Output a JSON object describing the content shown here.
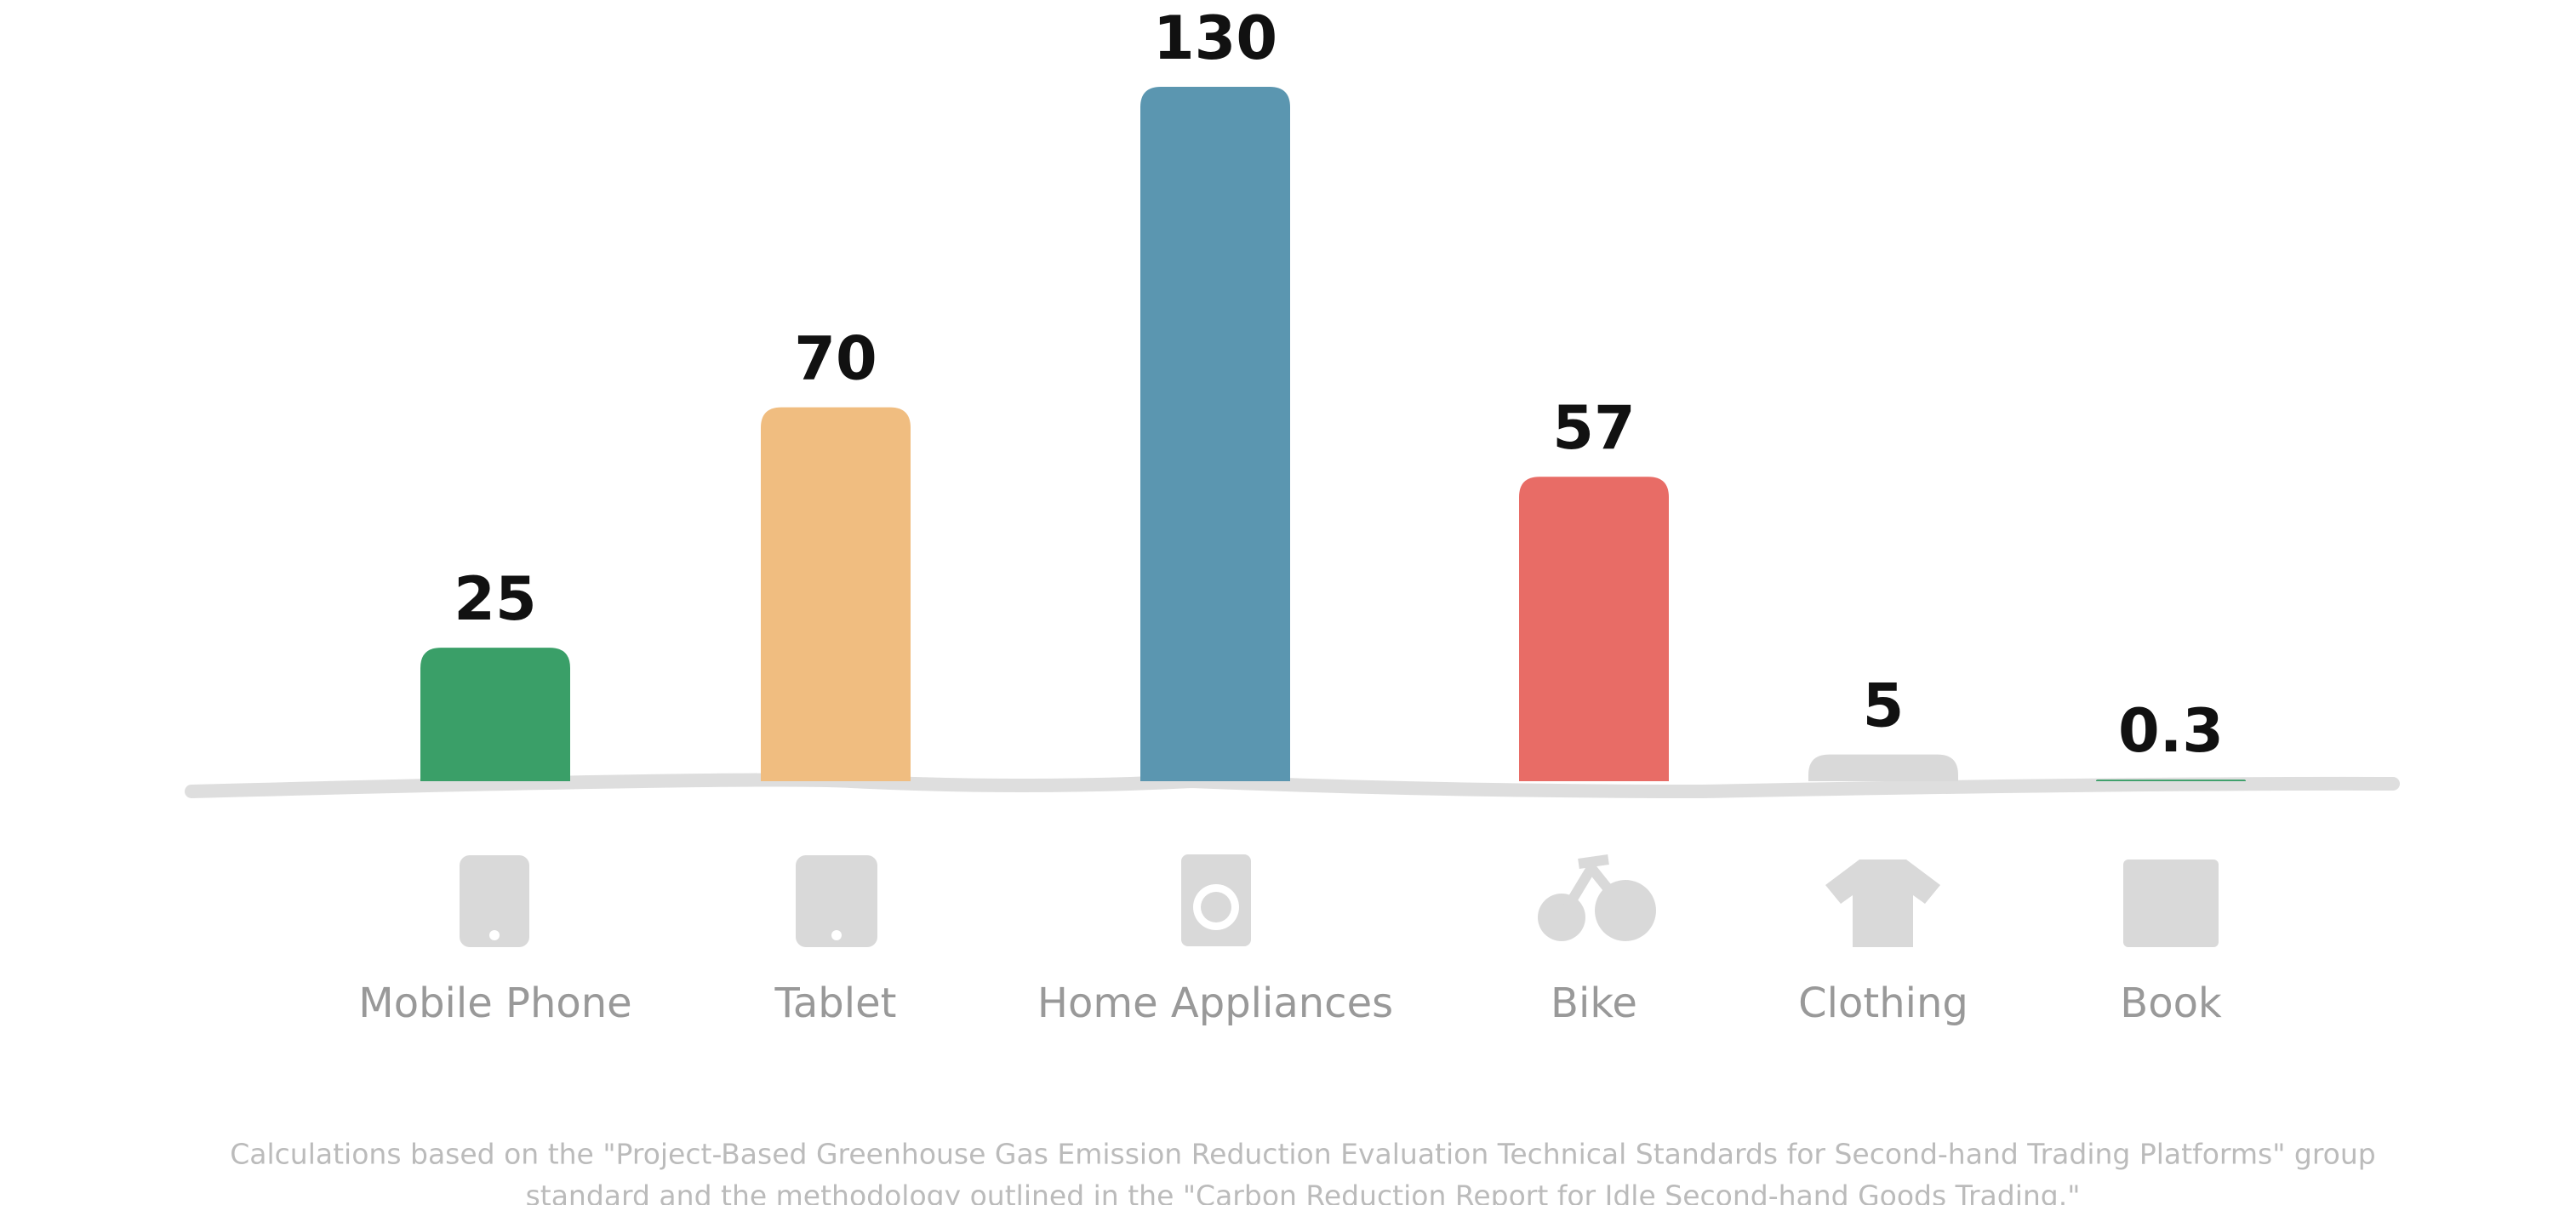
{
  "chart_data": {
    "type": "bar",
    "categories": [
      "Mobile Phone",
      "Tablet",
      "Home Appliances",
      "Bike",
      "Clothing",
      "Book"
    ],
    "values": [
      25,
      70,
      130,
      57,
      5,
      0.3
    ],
    "colors": [
      "#3a9f68",
      "#f0bd80",
      "#5b96b0",
      "#e86c66",
      "#d9d9d9",
      "#3a9f68"
    ],
    "footnote": [
      "Calculations based on the \"Project-Based Greenhouse Gas Emission Reduction Evaluation Technical Standards for Second-hand Trading Platforms\" group",
      "standard and the methodology outlined in the \"Carbon Reduction Report for Idle Second-hand Goods Trading.\""
    ]
  }
}
